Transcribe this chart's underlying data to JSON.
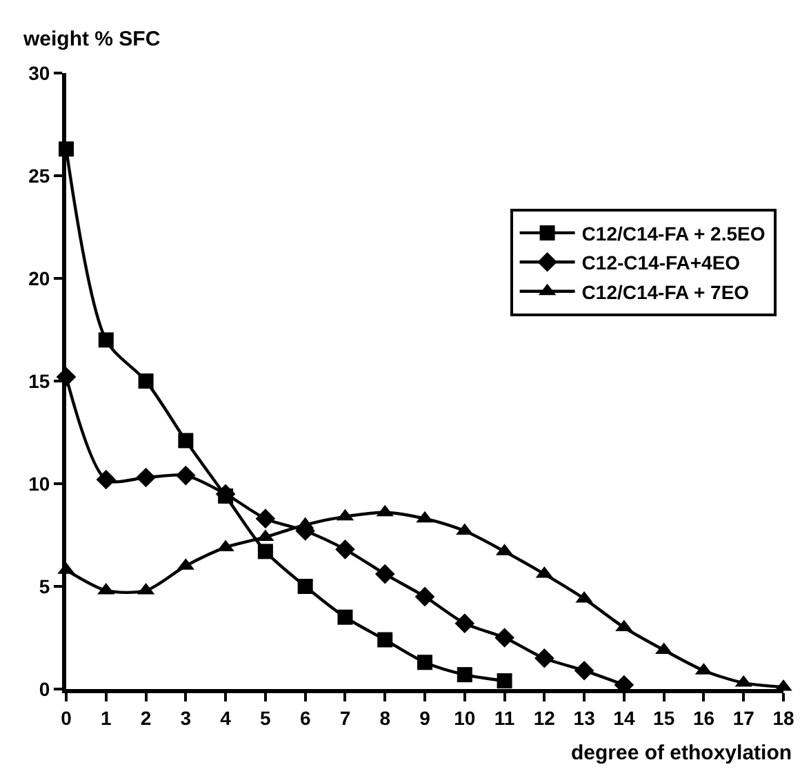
{
  "chart_data": {
    "type": "line",
    "xlabel": "degree of ethoxylation",
    "ylabel": "weight % SFC",
    "x": [
      0,
      1,
      2,
      3,
      4,
      5,
      6,
      7,
      8,
      9,
      10,
      11,
      12,
      13,
      14,
      15,
      16,
      17,
      18
    ],
    "series": [
      {
        "name": "C12/C14-FA + 2.5EO",
        "color": "#000000",
        "marker": "square",
        "values": [
          26.3,
          17.0,
          15.0,
          12.1,
          9.4,
          6.7,
          5.0,
          3.5,
          2.4,
          1.3,
          0.7,
          0.4,
          null,
          null,
          null,
          null,
          null,
          null,
          null
        ]
      },
      {
        "name": "C12-C14-FA+4EO",
        "color": "#000000",
        "marker": "diamond",
        "values": [
          15.2,
          10.2,
          10.3,
          10.4,
          9.5,
          8.3,
          7.7,
          6.8,
          5.6,
          4.5,
          3.2,
          2.5,
          1.5,
          0.9,
          0.2,
          null,
          null,
          null,
          null
        ]
      },
      {
        "name": "C12/C14-FA + 7EO",
        "color": "#000000",
        "marker": "triangle",
        "values": [
          5.8,
          4.8,
          4.8,
          6.0,
          6.9,
          7.4,
          8.0,
          8.4,
          8.6,
          8.3,
          7.7,
          6.7,
          5.6,
          4.4,
          3.0,
          1.9,
          0.9,
          0.3,
          0.1
        ]
      }
    ],
    "xlim": [
      0,
      18
    ],
    "xticks": [
      0,
      1,
      2,
      3,
      4,
      5,
      6,
      7,
      8,
      9,
      10,
      11,
      12,
      13,
      14,
      15,
      16,
      17,
      18
    ],
    "ylim": [
      0,
      30
    ],
    "yticks": [
      0,
      5,
      10,
      15,
      20,
      25,
      30
    ],
    "grid": false,
    "legend": "top right",
    "line_style": "solid"
  }
}
